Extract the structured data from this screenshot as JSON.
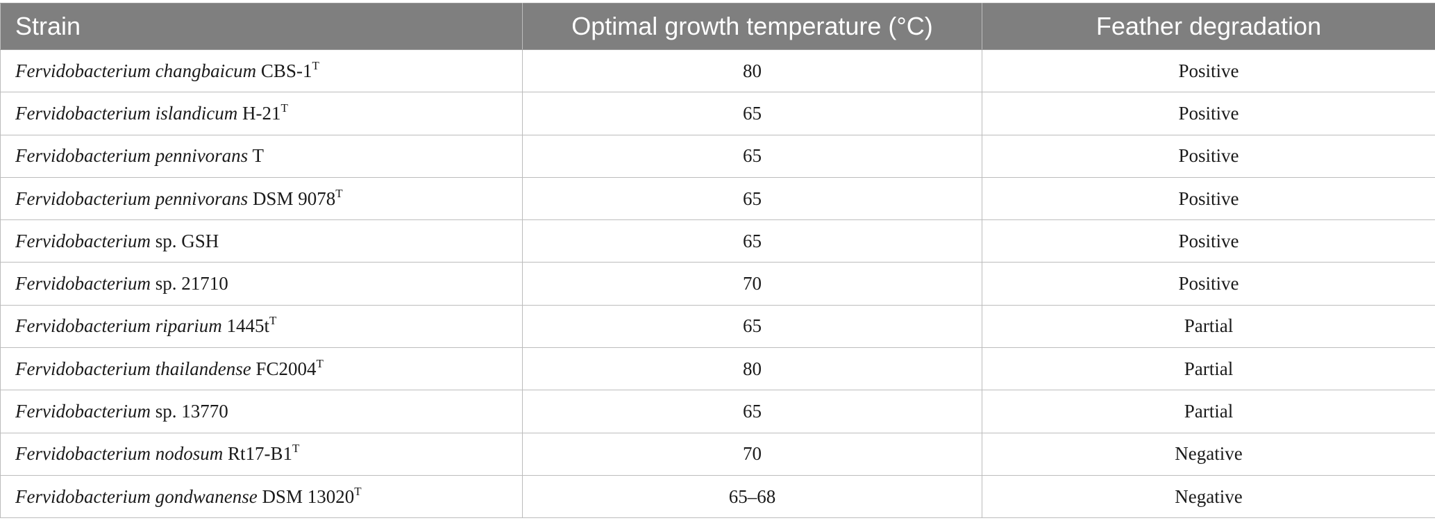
{
  "table": {
    "headers": [
      "Strain",
      "Optimal growth temperature (°C)",
      "Feather degradation"
    ],
    "rows": [
      {
        "genus": "Fervidobacterium",
        "species": "changbaicum",
        "strain": "CBS-1",
        "sup": "T",
        "temp": "80",
        "degradation": "Positive"
      },
      {
        "genus": "Fervidobacterium",
        "species": "islandicum",
        "strain": "H-21",
        "sup": "T",
        "temp": "65",
        "degradation": "Positive"
      },
      {
        "genus": "Fervidobacterium",
        "species": "pennivorans",
        "strain": "T",
        "sup": "",
        "temp": "65",
        "degradation": "Positive"
      },
      {
        "genus": "Fervidobacterium",
        "species": "pennivorans",
        "strain": "DSM 9078",
        "sup": "T",
        "temp": "65",
        "degradation": "Positive"
      },
      {
        "genus": "Fervidobacterium",
        "species": "",
        "strain": "sp. GSH",
        "sup": "",
        "temp": "65",
        "degradation": "Positive"
      },
      {
        "genus": "Fervidobacterium",
        "species": "",
        "strain": "sp. 21710",
        "sup": "",
        "temp": "70",
        "degradation": "Positive"
      },
      {
        "genus": "Fervidobacterium",
        "species": "riparium",
        "strain": "1445t",
        "sup": "T",
        "temp": "65",
        "degradation": "Partial"
      },
      {
        "genus": "Fervidobacterium",
        "species": "thailandense",
        "strain": "FC2004",
        "sup": "T",
        "temp": "80",
        "degradation": "Partial"
      },
      {
        "genus": "Fervidobacterium",
        "species": "",
        "strain": "sp. 13770",
        "sup": "",
        "temp": "65",
        "degradation": "Partial"
      },
      {
        "genus": "Fervidobacterium",
        "species": "nodosum",
        "strain": "Rt17-B1",
        "sup": "T",
        "temp": "70",
        "degradation": "Negative"
      },
      {
        "genus": "Fervidobacterium",
        "species": "gondwanense",
        "strain": "DSM 13020",
        "sup": "T",
        "temp": "65–68",
        "degradation": "Negative"
      }
    ]
  }
}
